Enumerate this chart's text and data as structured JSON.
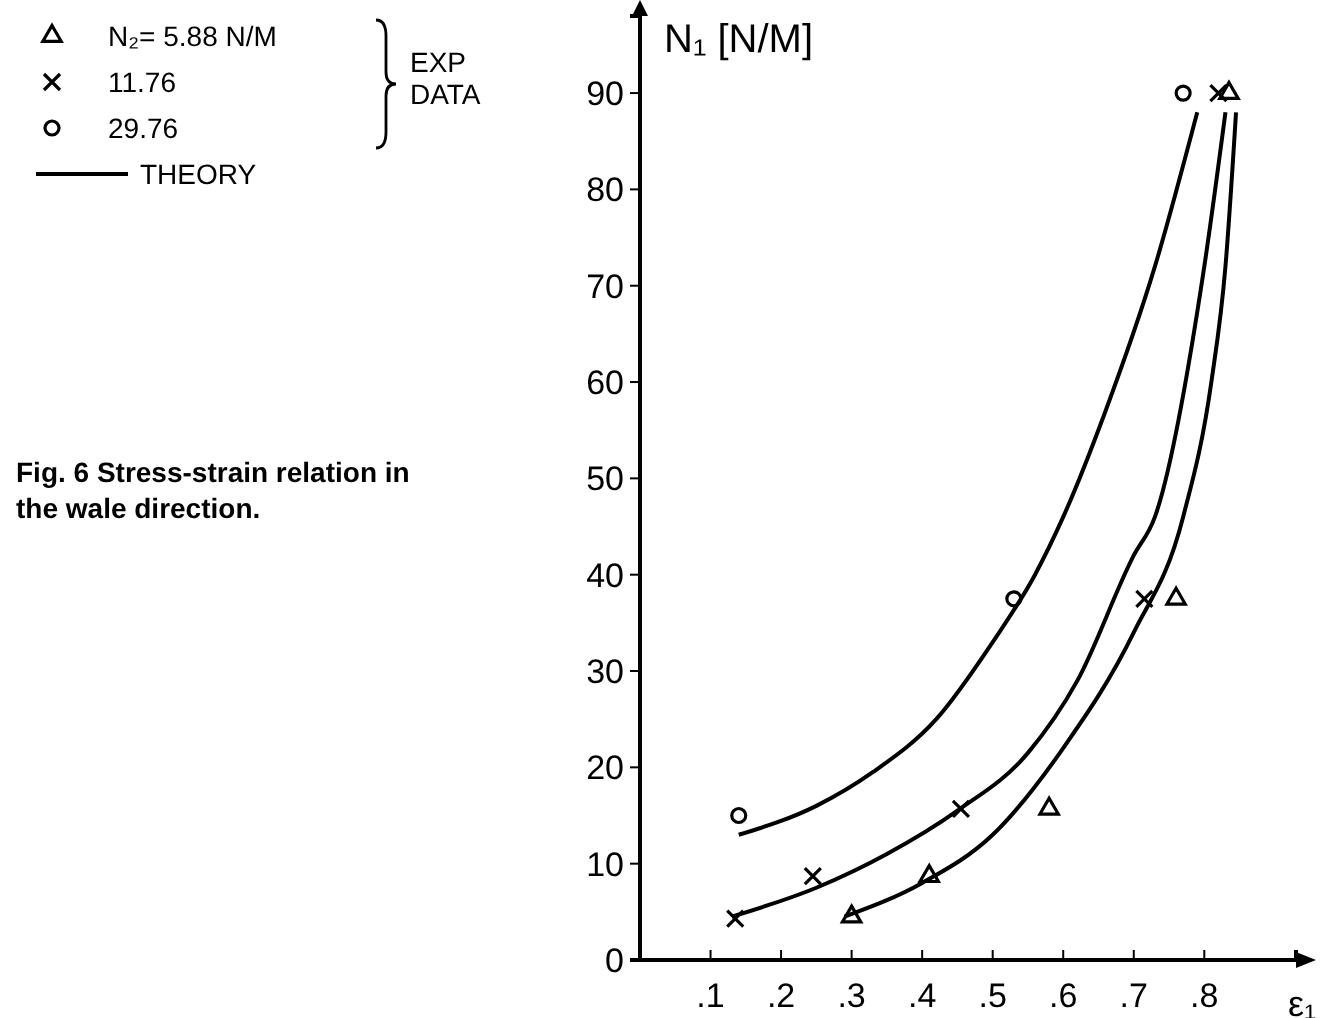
{
  "chart_data": {
    "type": "scatter",
    "xlabel": "ε₁",
    "ylabel": "N₁ [N/M]",
    "xlim": [
      0,
      0.93
    ],
    "ylim": [
      0,
      98
    ],
    "xticks": [
      {
        "value": 0.1,
        "label": ".1"
      },
      {
        "value": 0.2,
        "label": ".2"
      },
      {
        "value": 0.3,
        "label": ".3"
      },
      {
        "value": 0.4,
        "label": ".4"
      },
      {
        "value": 0.5,
        "label": ".5"
      },
      {
        "value": 0.6,
        "label": ".6"
      },
      {
        "value": 0.7,
        "label": ".7"
      },
      {
        "value": 0.8,
        "label": ".8"
      }
    ],
    "yticks": [
      0,
      10,
      20,
      30,
      40,
      50,
      60,
      70,
      80,
      90
    ],
    "grid": false,
    "legend": "top left",
    "annotations": [
      "EXP DATA",
      "Fig. 6  Stress-strain relation in the wale direction."
    ],
    "series": [
      {
        "name": "N₂= 5.88   N/M",
        "color": "#000000",
        "marker": "triangle",
        "x": [
          0.3,
          0.41,
          0.58,
          0.76,
          0.835
        ],
        "values": [
          4.5,
          8.7,
          15.7,
          37.5,
          90
        ]
      },
      {
        "name": "11.76",
        "color": "#000000",
        "marker": "cross",
        "x": [
          0.135,
          0.245,
          0.455,
          0.715,
          0.82
        ],
        "values": [
          4.3,
          8.7,
          15.7,
          37.5,
          90
        ]
      },
      {
        "name": "29.76",
        "color": "#000000",
        "marker": "circle",
        "x": [
          0.14,
          0.53,
          0.77
        ],
        "values": [
          15,
          37.5,
          90
        ]
      },
      {
        "name": "THEORY",
        "type": "line",
        "color": "#000000",
        "marker": "none",
        "x": [
          0.14,
          0.25,
          0.33,
          0.42,
          0.5,
          0.56,
          0.6,
          0.66,
          0.73,
          0.79
        ],
        "values": [
          13,
          16,
          19.5,
          25,
          33,
          40,
          46,
          57,
          72,
          88
        ]
      },
      {
        "type": "line",
        "color": "#000000",
        "marker": "none",
        "x": [
          0.13,
          0.25,
          0.35,
          0.45,
          0.55,
          0.62,
          0.7,
          0.73,
          0.8,
          0.83
        ],
        "values": [
          4.5,
          7.5,
          11,
          15.5,
          21.5,
          29,
          42,
          46,
          72,
          88
        ]
      },
      {
        "type": "line",
        "color": "#000000",
        "marker": "none",
        "x": [
          0.29,
          0.4,
          0.5,
          0.6,
          0.7,
          0.77,
          0.81,
          0.83,
          0.845
        ],
        "values": [
          4.5,
          8,
          13,
          22,
          34,
          46,
          60,
          72,
          88
        ]
      }
    ]
  }
}
